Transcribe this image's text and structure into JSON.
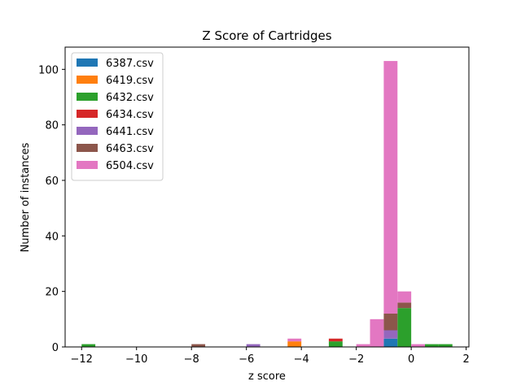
{
  "chart_data": {
    "type": "bar",
    "title": "Z Score of Cartridges",
    "xlabel": "z score",
    "ylabel": "Number of instances",
    "xlim": [
      -12.6,
      2.1
    ],
    "ylim": [
      0,
      108
    ],
    "xticks": [
      -12,
      -10,
      -8,
      -6,
      -4,
      -2,
      0,
      2
    ],
    "xtick_labels": [
      "−12",
      "−10",
      "−8",
      "−6",
      "−4",
      "−2",
      "0",
      "2"
    ],
    "yticks": [
      0,
      20,
      40,
      60,
      80,
      100
    ],
    "grid": false,
    "legend_position": "top-left",
    "bin_width": 0.5,
    "stacked": true,
    "series": [
      {
        "name": "6387.csv",
        "color": "#1f77b4",
        "bins": [
          [
            -1.0,
            3
          ]
        ]
      },
      {
        "name": "6419.csv",
        "color": "#ff7f0e",
        "bins": [
          [
            -4.5,
            2
          ]
        ]
      },
      {
        "name": "6432.csv",
        "color": "#2ca02c",
        "bins": [
          [
            -12.0,
            1
          ],
          [
            -3.0,
            2
          ],
          [
            -0.5,
            14
          ],
          [
            0.5,
            1
          ],
          [
            1.0,
            1
          ]
        ]
      },
      {
        "name": "6434.csv",
        "color": "#d62728",
        "bins": [
          [
            -3.0,
            1
          ]
        ]
      },
      {
        "name": "6441.csv",
        "color": "#9467bd",
        "bins": [
          [
            -6.0,
            1
          ],
          [
            -1.0,
            3
          ]
        ]
      },
      {
        "name": "6463.csv",
        "color": "#8c564b",
        "bins": [
          [
            -8.0,
            1
          ],
          [
            -1.0,
            6
          ],
          [
            -0.5,
            2
          ]
        ]
      },
      {
        "name": "6504.csv",
        "color": "#e377c2",
        "bins": [
          [
            -4.5,
            1
          ],
          [
            -2.0,
            1
          ],
          [
            -1.5,
            10
          ],
          [
            -1.0,
            91
          ],
          [
            -0.5,
            4
          ],
          [
            0.0,
            1
          ]
        ]
      }
    ]
  }
}
